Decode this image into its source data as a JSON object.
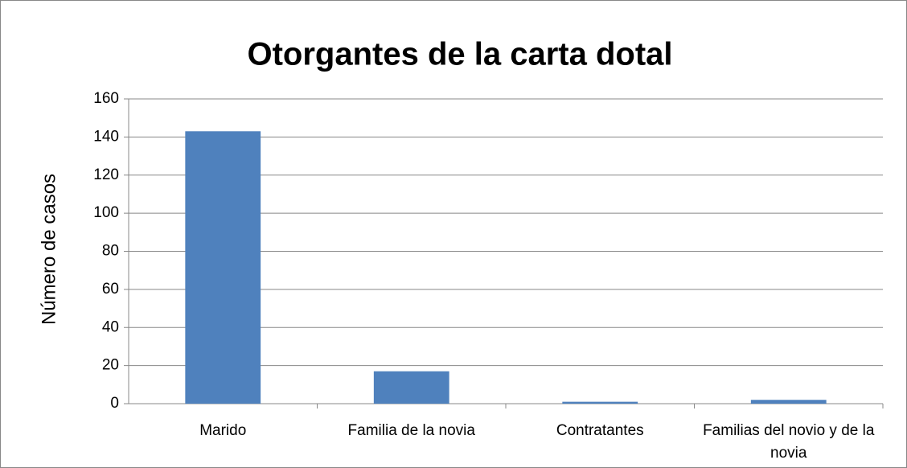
{
  "chart_data": {
    "type": "bar",
    "title": "Otorgantes de la carta dotal",
    "y_label": "Número de casos",
    "categories": [
      "Marido",
      "Familia de la novia",
      "Contratantes",
      "Familias del novio y de la novia"
    ],
    "values": [
      143,
      17,
      1,
      2
    ],
    "color": "#4f81bd",
    "ylim": [
      0,
      160
    ],
    "yticks": [
      0,
      20,
      40,
      60,
      80,
      100,
      120,
      140,
      160
    ],
    "grid": true
  }
}
